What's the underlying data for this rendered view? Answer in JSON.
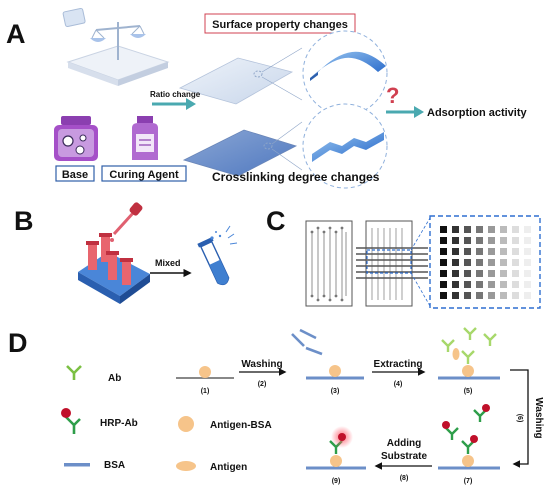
{
  "panels": {
    "a": "A",
    "b": "B",
    "c": "C",
    "d": "D"
  },
  "panel_a": {
    "surface_changes": "Surface property changes",
    "ratio_change": "Ratio change",
    "adsorption": "Adsorption activity",
    "base": "Base",
    "curing_agent": "Curing Agent",
    "crosslinking": "Crosslinking degree changes",
    "question_mark": "?"
  },
  "panel_b": {
    "mixed": "Mixed"
  },
  "panel_d": {
    "legend": {
      "ab": "Ab",
      "hrp_ab": "HRP-Ab",
      "bsa": "BSA",
      "antigen_bsa": "Antigen-BSA",
      "antigen": "Antigen"
    },
    "steps": {
      "washing": "Washing",
      "washing_num": "(2)",
      "extracting": "Extracting",
      "extracting_num": "(4)",
      "washing_vertical": "Washing",
      "washing_vertical_num": "(6)",
      "adding": "Adding",
      "substrate": "Substrate",
      "adding_num": "(8)"
    },
    "stages": {
      "s1": "(1)",
      "s3": "(3)",
      "s5": "(5)",
      "s7": "(7)",
      "s9": "(9)"
    }
  },
  "colors": {
    "teal_arrow": "#4aa9b0",
    "surface_blue": "#3f7fd0",
    "antibody_green": "#7bc043",
    "hrp_red": "#c0102a",
    "bead_orange": "#f6c48a",
    "bsa_blue": "#6c8fc8",
    "panel_c_blue": "#2f6fd0",
    "callout_red": "#d04050"
  }
}
